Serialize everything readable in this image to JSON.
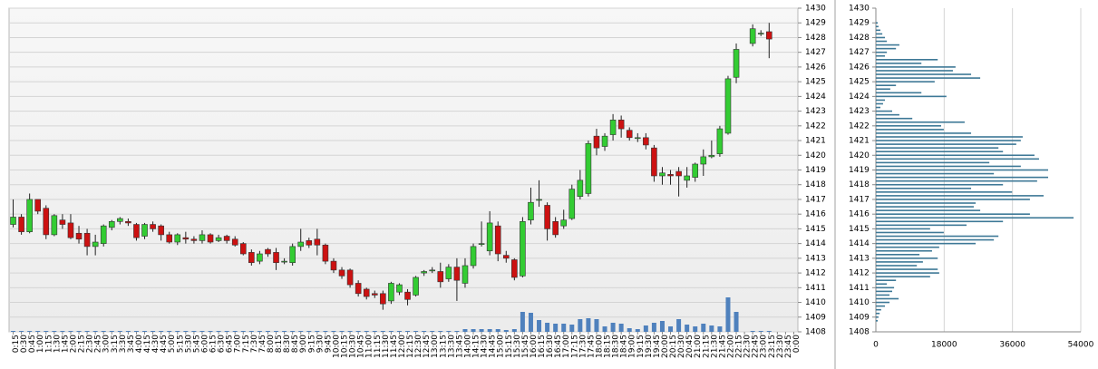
{
  "chart_data": [
    {
      "type": "candlestick",
      "categories": [
        "0:15",
        "0:30",
        "0:45",
        "1:00",
        "1:15",
        "1:30",
        "1:45",
        "2:00",
        "2:15",
        "2:30",
        "2:45",
        "3:00",
        "3:15",
        "3:30",
        "3:45",
        "4:00",
        "4:15",
        "4:30",
        "4:45",
        "5:00",
        "5:15",
        "5:30",
        "5:45",
        "6:00",
        "6:15",
        "6:30",
        "6:45",
        "7:00",
        "7:15",
        "7:30",
        "7:45",
        "8:00",
        "8:15",
        "8:30",
        "8:45",
        "9:00",
        "9:15",
        "9:30",
        "9:45",
        "10:00",
        "10:15",
        "10:30",
        "10:45",
        "11:00",
        "11:15",
        "11:30",
        "11:45",
        "12:00",
        "12:15",
        "12:30",
        "12:45",
        "13:00",
        "13:15",
        "13:30",
        "13:45",
        "14:00",
        "14:15",
        "14:30",
        "14:45",
        "15:00",
        "15:15",
        "15:30",
        "15:45",
        "16:00",
        "16:15",
        "16:30",
        "16:45",
        "17:00",
        "17:15",
        "17:30",
        "17:45",
        "18:00",
        "18:15",
        "18:30",
        "18:45",
        "19:00",
        "19:15",
        "19:30",
        "19:45",
        "20:00",
        "20:15",
        "20:30",
        "20:45",
        "21:00",
        "21:15",
        "21:30",
        "21:45",
        "22:00",
        "22:15",
        "22:30",
        "22:45",
        "23:00",
        "23:15",
        "23:30",
        "23:45",
        "0:00"
      ],
      "open": [
        1415.3,
        1415.8,
        1414.8,
        1417,
        1416.4,
        1414.6,
        1415.6,
        1415.4,
        1414.7,
        1414.7,
        1413.8,
        1414,
        1415.1,
        1415.5,
        1415.5,
        1415.3,
        1414.5,
        1415.3,
        1415.2,
        1414.6,
        1414.1,
        1414.4,
        1414.3,
        1414.2,
        1414.6,
        1414.2,
        1414.5,
        1414.3,
        1414,
        1413.4,
        1412.8,
        1413.6,
        1413.4,
        1412.8,
        1412.7,
        1413.8,
        1414.2,
        1414.3,
        1413.9,
        1412.8,
        1412.2,
        1412.2,
        1411.3,
        1410.9,
        1410.6,
        1410.6,
        1410.1,
        1410.7,
        1410.7,
        1410.5,
        1412,
        1412.2,
        1412.1,
        1411.6,
        1412.4,
        1411.3,
        1412.5,
        1414,
        1413.5,
        1415.2,
        1413.2,
        1412.9,
        1411.8,
        1415.6,
        1417,
        1416.6,
        1415.5,
        1415.2,
        1415.7,
        1417.2,
        1417.4,
        1421.3,
        1420.6,
        1421.4,
        1422.4,
        1421.7,
        1421.2,
        1421.2,
        1420.5,
        1418.6,
        1418.7,
        1418.9,
        1418.3,
        1418.5,
        1419.4,
        1419.9,
        1420.1,
        1421.5,
        1425.3,
        null,
        1427.6,
        1428.3,
        1428.4,
        null,
        null,
        null
      ],
      "high": [
        1417,
        1416,
        1417.4,
        1417,
        1416.6,
        1416,
        1416,
        1416,
        1415.2,
        1415,
        1414.6,
        1415.3,
        1415.6,
        1415.8,
        1415.7,
        1415.4,
        1415.4,
        1415.5,
        1415.3,
        1414.8,
        1414.7,
        1414.8,
        1414.5,
        1414.9,
        1414.7,
        1414.6,
        1414.6,
        1414.5,
        1414.1,
        1413.6,
        1413.5,
        1413.7,
        1413.7,
        1413,
        1414,
        1415,
        1414.4,
        1415,
        1414,
        1413,
        1412.4,
        1412.3,
        1411.5,
        1411,
        1410.8,
        1410.8,
        1411.4,
        1411.3,
        1410.9,
        1411.8,
        1412.2,
        1412.4,
        1412.7,
        1412.6,
        1413,
        1413,
        1414,
        1415.5,
        1416.2,
        1415.5,
        1413.5,
        1413,
        1415.8,
        1417.8,
        1418.3,
        1416.8,
        1415.8,
        1416.3,
        1418,
        1419,
        1421,
        1421.8,
        1421.5,
        1422.8,
        1422.7,
        1421.9,
        1421.5,
        1421.5,
        1420.7,
        1419.2,
        1419,
        1419.2,
        1419.2,
        1419.5,
        1420.4,
        1421,
        1422,
        1425.4,
        1427.6,
        null,
        1428.9,
        1428.5,
        1429,
        null,
        null,
        null
      ],
      "low": [
        1415.1,
        1414.6,
        1414.7,
        1416,
        1414.3,
        1414.5,
        1415,
        1414.3,
        1414,
        1413.2,
        1413.2,
        1413.8,
        1414.9,
        1415.3,
        1415.2,
        1414.2,
        1414.3,
        1414.8,
        1414.2,
        1414,
        1413.9,
        1414,
        1414,
        1414,
        1414,
        1414.1,
        1414,
        1413.8,
        1413.2,
        1412.5,
        1412.6,
        1413.1,
        1412.2,
        1412.6,
        1412.5,
        1413.5,
        1413.7,
        1413.2,
        1412.6,
        1412,
        1411.6,
        1411,
        1410.4,
        1410.2,
        1410.3,
        1409.5,
        1409.9,
        1410.5,
        1409.8,
        1410.4,
        1411.8,
        1412,
        1411,
        1411.4,
        1410.1,
        1411,
        1412.3,
        1413.8,
        1413.2,
        1412.8,
        1412.7,
        1411.5,
        1411.7,
        1415.3,
        1416.5,
        1414.2,
        1414.4,
        1415,
        1415.6,
        1417,
        1417.2,
        1420,
        1420.3,
        1421,
        1421.2,
        1421,
        1420.9,
        1420.4,
        1418.2,
        1418,
        1418,
        1417.2,
        1417.8,
        1418.2,
        1418.6,
        1419.8,
        1419.9,
        1421.4,
        1424.9,
        null,
        1427.4,
        1428.1,
        1426.6,
        null,
        null,
        null
      ],
      "close": [
        1415.8,
        1414.8,
        1417,
        1416.2,
        1414.6,
        1415.9,
        1415.3,
        1414.4,
        1414.3,
        1413.8,
        1414.1,
        1415.2,
        1415.5,
        1415.7,
        1415.4,
        1414.4,
        1415.3,
        1415,
        1414.6,
        1414.1,
        1414.6,
        1414.3,
        1414.2,
        1414.6,
        1414.1,
        1414.4,
        1414.2,
        1413.9,
        1413.3,
        1412.7,
        1413.3,
        1413.3,
        1412.7,
        1412.8,
        1413.8,
        1414.1,
        1413.9,
        1413.9,
        1412.8,
        1412.2,
        1411.8,
        1411.2,
        1410.6,
        1410.4,
        1410.5,
        1409.9,
        1411.3,
        1411.2,
        1410.2,
        1411.7,
        1412.1,
        1412.2,
        1411.4,
        1412.4,
        1411.5,
        1412.5,
        1413.8,
        1414,
        1415.4,
        1413.3,
        1413,
        1411.7,
        1415.5,
        1416.8,
        1417,
        1415,
        1414.6,
        1415.6,
        1417.7,
        1418.3,
        1420.8,
        1420.5,
        1421.3,
        1422.4,
        1421.8,
        1421.2,
        1421.2,
        1420.7,
        1418.6,
        1418.8,
        1418.6,
        1418.6,
        1418.6,
        1419.4,
        1419.9,
        1420,
        1421.8,
        1425.2,
        1427.2,
        null,
        1428.6,
        1428.3,
        1427.9,
        null,
        null,
        null
      ],
      "volume": [
        1,
        1,
        1,
        1,
        1,
        1,
        1,
        1,
        1,
        1,
        1,
        1,
        1,
        1,
        1,
        1,
        1,
        1,
        1,
        1,
        1,
        1,
        1,
        1,
        1,
        1,
        1,
        1,
        1,
        1,
        1,
        1,
        1,
        1,
        1,
        1,
        1,
        1,
        1,
        1,
        1,
        1,
        1,
        1,
        1,
        1,
        1,
        1,
        1,
        1,
        1,
        1,
        1,
        1,
        1,
        3,
        3,
        3,
        3,
        3,
        2,
        3,
        22,
        21,
        13,
        10,
        9,
        9,
        8,
        14,
        15,
        14,
        6,
        10,
        9,
        4,
        3,
        7,
        10,
        12,
        6,
        14,
        8,
        6,
        9,
        7,
        6,
        38,
        22,
        null,
        1,
        1,
        1,
        null,
        null,
        null
      ],
      "ylim": [
        1408,
        1430
      ],
      "yticks": [
        1408,
        1409,
        1410,
        1411,
        1412,
        1413,
        1414,
        1415,
        1416,
        1417,
        1418,
        1419,
        1420,
        1421,
        1422,
        1423,
        1424,
        1425,
        1426,
        1427,
        1428,
        1429,
        1430
      ],
      "grid": true,
      "up_color": "#33cc33",
      "down_color": "#cc1111",
      "volume_color": "#4f81bd"
    },
    {
      "type": "profile",
      "prices": [
        1429,
        1428.75,
        1428.5,
        1428.25,
        1428,
        1427.75,
        1427.5,
        1427.25,
        1427,
        1426.75,
        1426.5,
        1426.25,
        1426,
        1425.75,
        1425.5,
        1425.25,
        1425,
        1424.75,
        1424.5,
        1424.25,
        1424,
        1423.75,
        1423.5,
        1423.25,
        1423,
        1422.75,
        1422.5,
        1422.25,
        1422,
        1421.75,
        1421.5,
        1421.25,
        1421,
        1420.75,
        1420.5,
        1420.25,
        1420,
        1419.75,
        1419.5,
        1419.25,
        1419,
        1418.75,
        1418.5,
        1418.25,
        1418,
        1417.75,
        1417.5,
        1417.25,
        1417,
        1416.75,
        1416.5,
        1416.25,
        1416,
        1415.75,
        1415.5,
        1415.25,
        1415,
        1414.75,
        1414.5,
        1414.25,
        1414,
        1413.75,
        1413.5,
        1413.25,
        1413,
        1412.75,
        1412.5,
        1412.25,
        1412,
        1411.75,
        1411.5,
        1411.25,
        1411,
        1410.75,
        1410.5,
        1410.25,
        1410,
        1409.75,
        1409.5,
        1409.25,
        1409,
        1408.75
      ],
      "values": [
        500,
        700,
        1200,
        1700,
        2400,
        2900,
        6200,
        5300,
        2900,
        2400,
        16300,
        12000,
        21000,
        20300,
        25100,
        27500,
        15500,
        5300,
        3800,
        12000,
        18600,
        2400,
        1900,
        1200,
        4300,
        6200,
        9600,
        23400,
        17200,
        17900,
        25100,
        38700,
        38200,
        37000,
        32300,
        33500,
        41800,
        43000,
        29900,
        38200,
        45400,
        31100,
        45400,
        42500,
        33500,
        25100,
        35900,
        44200,
        40600,
        26300,
        25800,
        27500,
        40600,
        52100,
        33500,
        23900,
        14300,
        17900,
        32300,
        31100,
        26300,
        16700,
        14800,
        11500,
        16300,
        12400,
        10800,
        16300,
        16700,
        14300,
        5300,
        2900,
        4800,
        4300,
        3600,
        6000,
        3600,
        2400,
        1400,
        1000,
        700,
        500
      ],
      "xlim": [
        0,
        54000
      ],
      "xticks": [
        0,
        18000,
        36000,
        54000
      ],
      "ylim": [
        1408,
        1430
      ],
      "yticks": [
        1408,
        1409,
        1410,
        1411,
        1412,
        1413,
        1414,
        1415,
        1416,
        1417,
        1418,
        1419,
        1420,
        1421,
        1422,
        1423,
        1424,
        1425,
        1426,
        1427,
        1428,
        1429,
        1430
      ],
      "grid": true,
      "color": "#3d7896"
    }
  ]
}
